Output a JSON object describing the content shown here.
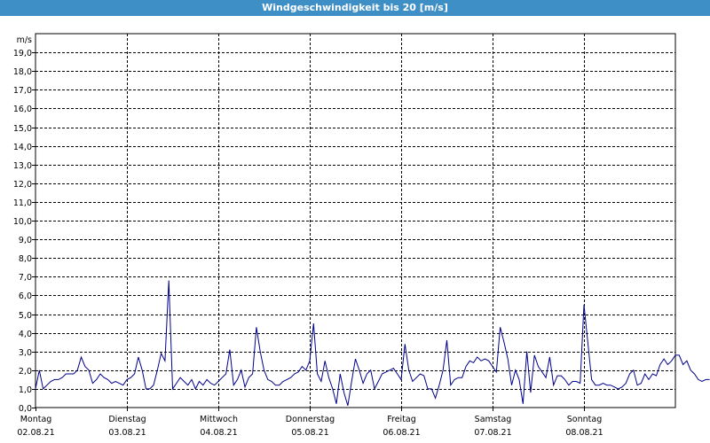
{
  "title": "Windgeschwindigkeit bis 20 [m/s]",
  "chart_data": {
    "type": "line",
    "title": "Windgeschwindigkeit bis 20 [m/s]",
    "ylabel": "m/s",
    "ylim": [
      0,
      20
    ],
    "yticks": [
      "0,0",
      "1,0",
      "2,0",
      "3,0",
      "4,0",
      "5,0",
      "6,0",
      "7,0",
      "8,0",
      "9,0",
      "10,0",
      "11,0",
      "12,0",
      "13,0",
      "14,0",
      "15,0",
      "16,0",
      "17,0",
      "18,0",
      "19,0"
    ],
    "xlim": [
      "2021-08-02 00:00",
      "2021-08-09 00:00"
    ],
    "x_ticks": [
      {
        "day": "Montag",
        "date": "02.08.21"
      },
      {
        "day": "Dienstag",
        "date": "03.08.21"
      },
      {
        "day": "Mittwoch",
        "date": "04.08.21"
      },
      {
        "day": "Donnerstag",
        "date": "05.08.21"
      },
      {
        "day": "Freitag",
        "date": "06.08.21"
      },
      {
        "day": "Samstag",
        "date": "07.08.21"
      },
      {
        "day": "Sonntag",
        "date": "08.08.21"
      }
    ],
    "grid": true,
    "line_color": "#00008b",
    "series": [
      {
        "x_start": "2021-08-02 00:00",
        "interval_hours": 1,
        "values": [
          1.0,
          2.0,
          1.0,
          1.2,
          1.4,
          1.5,
          1.5,
          1.6,
          1.8,
          1.8,
          1.8,
          2.0,
          2.7,
          2.2,
          2.0,
          1.3,
          1.5,
          1.8,
          1.6,
          1.5,
          1.3,
          1.4,
          1.3,
          1.2,
          1.5,
          1.6,
          1.8,
          2.7,
          2.0,
          1.0,
          1.0,
          1.2,
          2.0,
          2.9,
          2.5,
          6.8,
          1.0,
          1.3,
          1.6,
          1.4,
          1.2,
          1.5,
          1.0,
          1.4,
          1.2,
          1.5,
          1.3,
          1.2,
          1.4,
          1.6,
          1.8,
          3.1,
          1.2,
          1.5,
          2.0,
          1.1,
          1.6,
          1.8,
          4.3,
          3.0,
          2.0,
          1.5,
          1.4,
          1.2,
          1.2,
          1.4,
          1.5,
          1.6,
          1.8,
          1.9,
          2.2,
          2.0,
          2.5,
          4.5,
          1.8,
          1.4,
          2.5,
          1.6,
          1.0,
          0.2,
          1.8,
          0.8,
          0.1,
          1.4,
          2.6,
          2.0,
          1.3,
          1.8,
          2.0,
          1.0,
          1.4,
          1.8,
          1.9,
          2.0,
          2.1,
          1.8,
          1.5,
          3.4,
          2.0,
          1.4,
          1.6,
          1.8,
          1.7,
          1.0,
          1.0,
          0.5,
          1.2,
          2.0,
          3.6,
          1.2,
          1.5,
          1.6,
          1.6,
          2.2,
          2.5,
          2.4,
          2.7,
          2.5,
          2.6,
          2.5,
          2.2,
          1.9,
          4.3,
          3.5,
          2.6,
          1.2,
          2.0,
          1.5,
          0.2,
          3.0,
          0.8,
          2.8,
          2.2,
          1.9,
          1.6,
          2.7,
          1.2,
          1.7,
          1.7,
          1.5,
          1.2,
          1.4,
          1.4,
          1.3,
          5.5,
          3.5,
          1.5,
          1.2,
          1.2,
          1.3,
          1.2,
          1.2,
          1.1,
          1.0,
          1.1,
          1.3,
          1.8,
          2.0,
          1.2,
          1.3,
          1.8,
          1.5,
          1.8,
          1.7,
          2.3,
          2.6,
          2.3,
          2.5,
          2.8,
          2.8,
          2.3,
          2.5,
          2.0,
          1.8,
          1.5,
          1.4,
          1.5,
          1.5
        ]
      }
    ]
  }
}
